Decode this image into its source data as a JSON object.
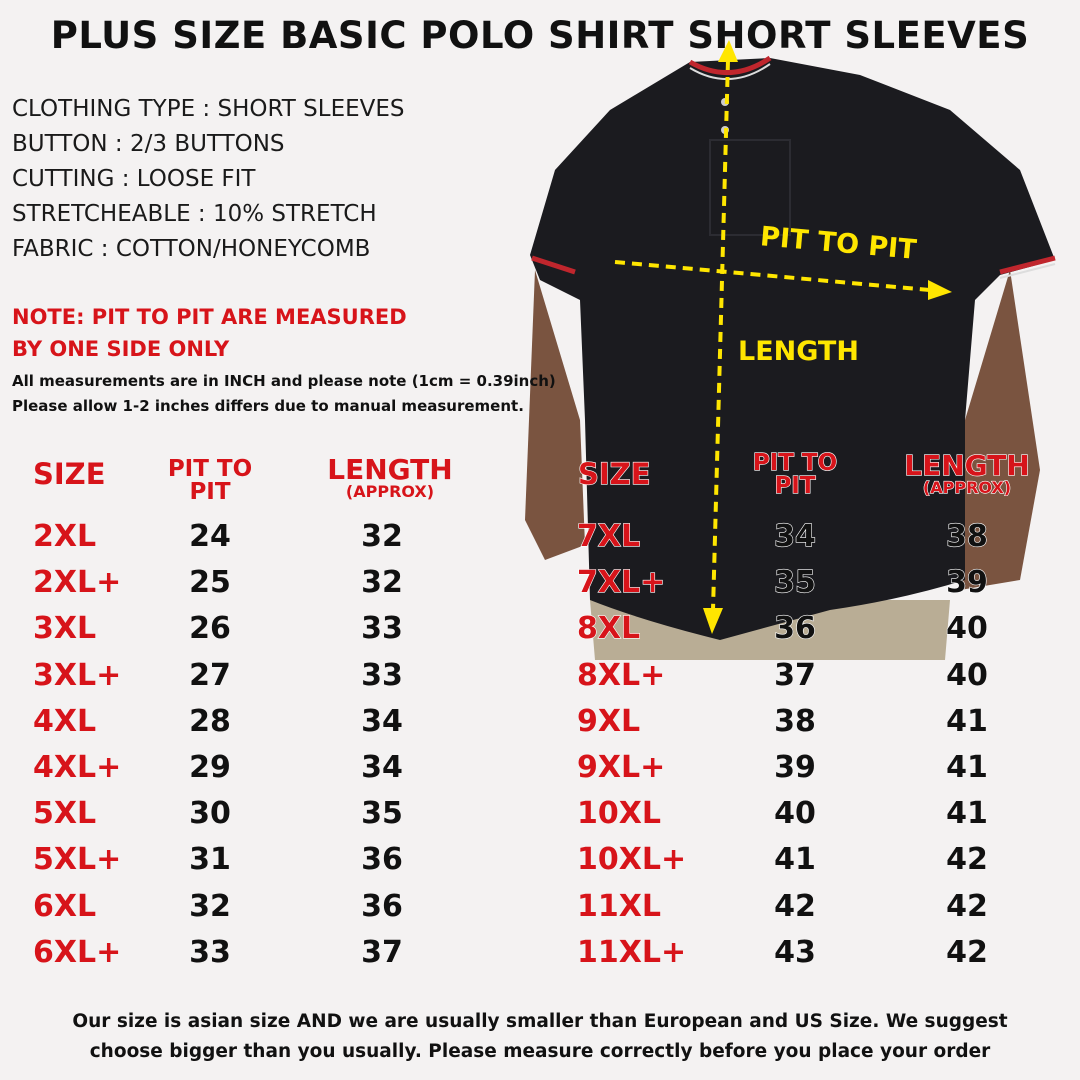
{
  "title": "PLUS SIZE BASIC POLO SHIRT SHORT SLEEVES",
  "specs": [
    "CLOTHING TYPE : SHORT SLEEVES",
    "BUTTON : 2/3 BUTTONS",
    "CUTTING : LOOSE FIT",
    "STRETCHEABLE : 10% STRETCH",
    "FABRIC :  COTTON/HONEYCOMB"
  ],
  "note": [
    "NOTE: PIT TO PIT ARE MEASURED",
    "BY ONE SIDE ONLY"
  ],
  "info": [
    "All measurements are in INCH and please note (1cm = 0.39inch)",
    "Please allow 1-2 inches differs due to manual measurement."
  ],
  "diagram": {
    "pit_label": "PIT TO PIT",
    "length_label": "LENGTH",
    "arrow_color": "#ffe600",
    "shirt_color": "#1b1b1f"
  },
  "table_headers": {
    "size": "SIZE",
    "pit_line1": "PIT TO",
    "pit_line2": "PIT",
    "length": "LENGTH",
    "approx": "(APPROX)"
  },
  "left_table": [
    {
      "size": "2XL",
      "pit": "24",
      "length": "32"
    },
    {
      "size": "2XL+",
      "pit": "25",
      "length": "32"
    },
    {
      "size": "3XL",
      "pit": "26",
      "length": "33"
    },
    {
      "size": "3XL+",
      "pit": "27",
      "length": "33"
    },
    {
      "size": "4XL",
      "pit": "28",
      "length": "34"
    },
    {
      "size": "4XL+",
      "pit": "29",
      "length": "34"
    },
    {
      "size": "5XL",
      "pit": "30",
      "length": "35"
    },
    {
      "size": "5XL+",
      "pit": "31",
      "length": "36"
    },
    {
      "size": "6XL",
      "pit": "32",
      "length": "36"
    },
    {
      "size": "6XL+",
      "pit": "33",
      "length": "37"
    }
  ],
  "right_table": [
    {
      "size": "7XL",
      "pit": "34",
      "length": "38"
    },
    {
      "size": "7XL+",
      "pit": "35",
      "length": "39"
    },
    {
      "size": "8XL",
      "pit": "36",
      "length": "40"
    },
    {
      "size": "8XL+",
      "pit": "37",
      "length": "40"
    },
    {
      "size": "9XL",
      "pit": "38",
      "length": "41"
    },
    {
      "size": "9XL+",
      "pit": "39",
      "length": "41"
    },
    {
      "size": "10XL",
      "pit": "40",
      "length": "41"
    },
    {
      "size": "10XL+",
      "pit": "41",
      "length": "42"
    },
    {
      "size": "11XL",
      "pit": "42",
      "length": "42"
    },
    {
      "size": "11XL+",
      "pit": "43",
      "length": "42"
    }
  ],
  "footer": [
    "Our size is asian size AND we are usually smaller than European and US Size. We suggest",
    "choose bigger than you usually. Please measure correctly before you place your order"
  ],
  "colors": {
    "accent_red": "#d7141a",
    "text": "#111111"
  }
}
